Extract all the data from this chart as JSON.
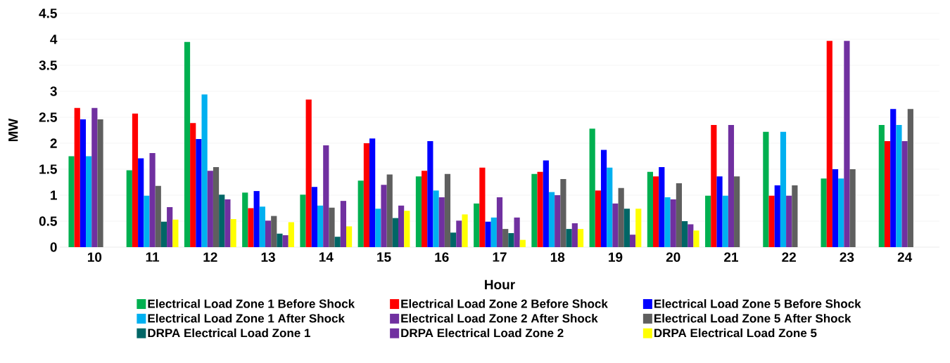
{
  "chart_data": {
    "type": "bar",
    "xlabel": "Hour",
    "ylabel": "MW",
    "categories": [
      "10",
      "11",
      "12",
      "13",
      "14",
      "15",
      "16",
      "17",
      "18",
      "19",
      "20",
      "21",
      "22",
      "23",
      "24"
    ],
    "ylim": [
      0,
      4.5
    ],
    "yticks": [
      0,
      0.5,
      1,
      1.5,
      2,
      2.5,
      3,
      3.5,
      4,
      4.5
    ],
    "grid": "y",
    "legend": "bottom",
    "series": [
      {
        "name": "Electrical Load Zone 1 Before Shock",
        "color": "#00b050",
        "values": [
          1.75,
          1.48,
          3.95,
          1.05,
          1.01,
          1.28,
          1.36,
          0.84,
          1.41,
          2.28,
          1.45,
          0.99,
          2.22,
          1.32,
          2.35
        ]
      },
      {
        "name": "Electrical Load Zone 2 Before Shock",
        "color": "#ff0000",
        "values": [
          2.68,
          2.57,
          2.39,
          0.75,
          2.84,
          2.0,
          1.47,
          1.53,
          1.45,
          1.09,
          1.36,
          2.35,
          0.99,
          3.97,
          2.04
        ]
      },
      {
        "name": "Electrical Load Zone 5 Before Shock",
        "color": "#0000ff",
        "values": [
          2.46,
          1.71,
          2.08,
          1.08,
          1.16,
          2.09,
          2.04,
          0.49,
          1.67,
          1.87,
          1.54,
          1.36,
          1.19,
          1.5,
          2.66
        ]
      },
      {
        "name": "Electrical Load Zone 1 After Shock",
        "color": "#00b0f0",
        "values": [
          1.75,
          0.99,
          2.94,
          0.78,
          0.8,
          0.74,
          1.09,
          0.57,
          1.06,
          1.53,
          0.96,
          0.99,
          2.22,
          1.32,
          2.35
        ]
      },
      {
        "name": "Electrical Load Zone 2 After Shock",
        "color": "#7030a0",
        "values": [
          2.68,
          1.81,
          1.47,
          0.51,
          1.96,
          1.2,
          0.96,
          0.96,
          1.0,
          0.84,
          0.92,
          2.35,
          0.99,
          3.97,
          2.04
        ]
      },
      {
        "name": "Electrical Load Zone 5 After Shock",
        "color": "#5f5f5f",
        "values": [
          2.46,
          1.18,
          1.54,
          0.6,
          0.76,
          1.4,
          1.41,
          0.35,
          1.31,
          1.14,
          1.23,
          1.36,
          1.19,
          1.5,
          2.66
        ]
      },
      {
        "name": "DRPA Electrical Load Zone 1",
        "color": "#006666",
        "values": [
          null,
          0.49,
          1.01,
          0.26,
          0.2,
          0.56,
          0.28,
          0.27,
          0.35,
          0.74,
          0.5,
          null,
          null,
          null,
          null
        ]
      },
      {
        "name": "DRPA Electrical Load Zone 2",
        "color": "#7030a0",
        "values": [
          null,
          0.77,
          0.92,
          0.23,
          0.89,
          0.8,
          0.51,
          0.57,
          0.46,
          0.24,
          0.44,
          null,
          null,
          null,
          null
        ]
      },
      {
        "name": "DRPA Electrical Load Zone 5",
        "color": "#ffff00",
        "values": [
          null,
          0.53,
          0.54,
          0.48,
          0.4,
          0.7,
          0.63,
          0.14,
          0.35,
          0.74,
          0.32,
          null,
          null,
          null,
          null
        ]
      }
    ]
  }
}
